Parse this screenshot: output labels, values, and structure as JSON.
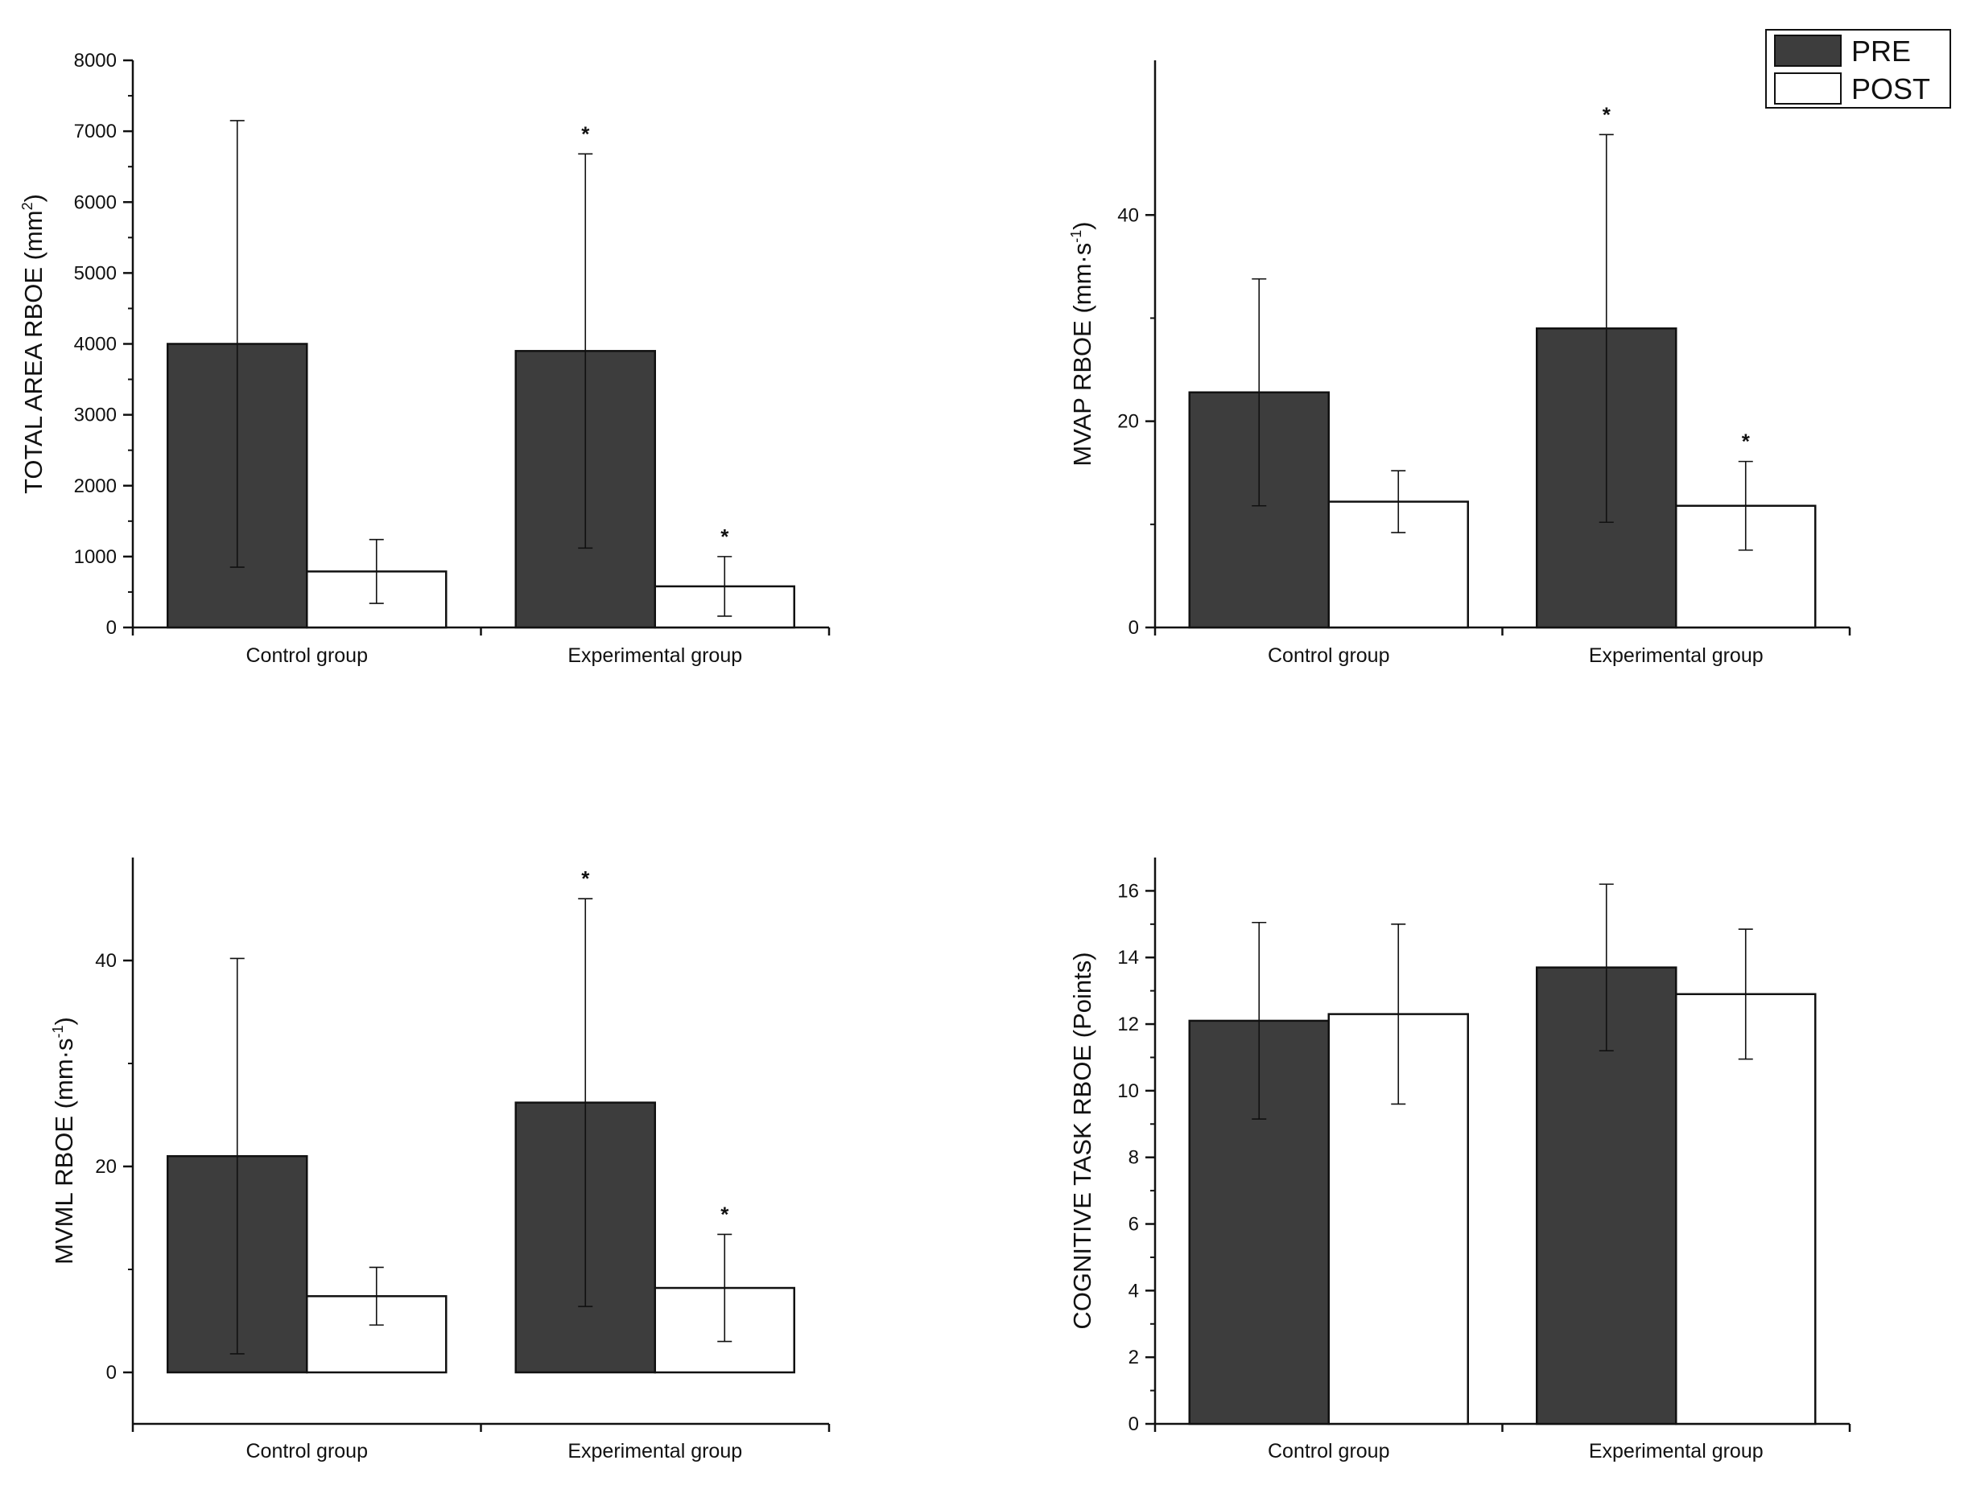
{
  "legend": [
    {
      "label": "PRE",
      "color": "#3d3d3d"
    },
    {
      "label": "POST",
      "color": "#ffffff"
    }
  ],
  "chart_data": [
    {
      "type": "bar",
      "id": "total-area",
      "title": "",
      "ylabel": {
        "text": "TOTAL AREA RBOE (mm",
        "sup": "2",
        "tail": ")"
      },
      "categories": [
        "Control group",
        "Experimental group"
      ],
      "ylim": [
        0,
        8000
      ],
      "yticks": [
        0,
        1000,
        2000,
        3000,
        4000,
        5000,
        6000,
        7000,
        8000
      ],
      "series": [
        {
          "name": "PRE",
          "values": [
            4000,
            3900
          ],
          "errors": [
            3150,
            2780
          ]
        },
        {
          "name": "POST",
          "values": [
            790,
            580
          ],
          "errors": [
            450,
            420
          ]
        }
      ],
      "significance": [
        [
          false,
          true
        ],
        [
          false,
          true
        ]
      ]
    },
    {
      "type": "bar",
      "id": "mvap",
      "title": "",
      "ylabel": {
        "text": "MVAP RBOE (mm·s",
        "sup": "-1",
        "tail": ")"
      },
      "categories": [
        "Control group",
        "Experimental group"
      ],
      "ylim": [
        0,
        55
      ],
      "yticks": [
        0,
        20,
        40
      ],
      "series": [
        {
          "name": "PRE",
          "values": [
            22.8,
            29.0
          ],
          "errors": [
            11.0,
            18.8
          ]
        },
        {
          "name": "POST",
          "values": [
            12.2,
            11.8
          ],
          "errors": [
            3.0,
            4.3
          ]
        }
      ],
      "significance": [
        [
          false,
          true
        ],
        [
          false,
          true
        ]
      ]
    },
    {
      "type": "bar",
      "id": "mvml",
      "title": "",
      "ylabel": {
        "text": "MVML RBOE (mm·s",
        "sup": "-1",
        "tail": ")"
      },
      "categories": [
        "Control group",
        "Experimental group"
      ],
      "ylim": [
        -5,
        50
      ],
      "yticks": [
        0,
        20,
        40
      ],
      "series": [
        {
          "name": "PRE",
          "values": [
            21.0,
            26.2
          ],
          "errors": [
            19.2,
            19.8
          ]
        },
        {
          "name": "POST",
          "values": [
            7.4,
            8.2
          ],
          "errors": [
            2.8,
            5.2
          ]
        }
      ],
      "significance": [
        [
          false,
          true
        ],
        [
          false,
          true
        ]
      ]
    },
    {
      "type": "bar",
      "id": "cognitive",
      "title": "",
      "ylabel": {
        "text": "COGNITIVE TASK RBOE (Points)",
        "sup": "",
        "tail": ""
      },
      "categories": [
        "Control group",
        "Experimental group"
      ],
      "ylim": [
        0,
        17
      ],
      "yticks": [
        0,
        2,
        4,
        6,
        8,
        10,
        12,
        14,
        16
      ],
      "series": [
        {
          "name": "PRE",
          "values": [
            12.1,
            13.7
          ],
          "errors": [
            2.95,
            2.5
          ]
        },
        {
          "name": "POST",
          "values": [
            12.3,
            12.9
          ],
          "errors": [
            2.7,
            1.95
          ]
        }
      ],
      "significance": [
        [
          false,
          false
        ],
        [
          false,
          false
        ]
      ]
    }
  ]
}
